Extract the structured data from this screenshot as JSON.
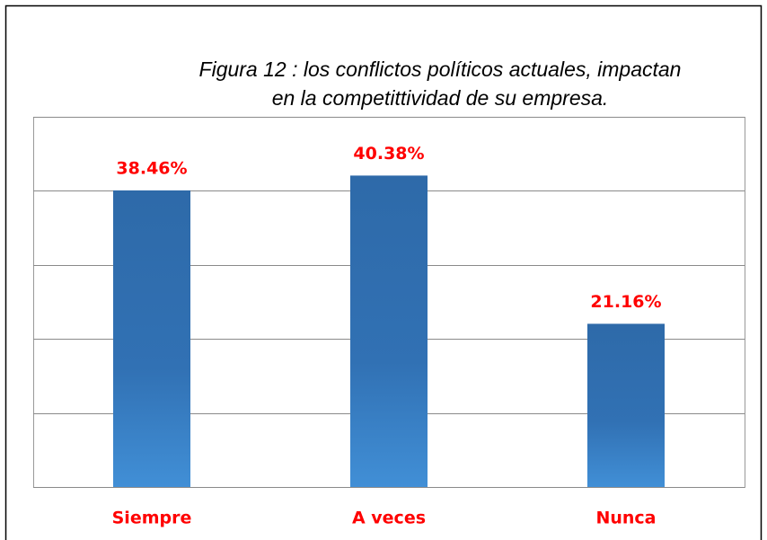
{
  "chart_data": {
    "type": "bar",
    "title": [
      "Figura 12 : los conflictos políticos actuales, impactan",
      "en la competittividad de su empresa."
    ],
    "categories": [
      "Siempre",
      "A veces",
      "Nunca"
    ],
    "values": [
      38.46,
      40.38,
      21.16
    ],
    "value_labels": [
      "38.46%",
      "40.38%",
      "21.16%"
    ],
    "color": "#2f6eaf",
    "ylim": [
      0,
      48
    ],
    "yticks": [
      0,
      9.6,
      19.2,
      28.8,
      38.4,
      48
    ],
    "grid": true
  }
}
